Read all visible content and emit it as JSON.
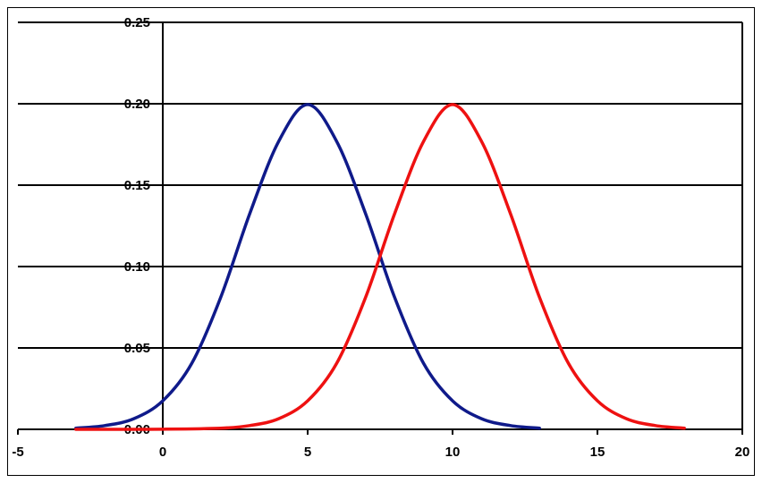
{
  "chart_data": {
    "type": "line",
    "title": "",
    "xlabel": "",
    "ylabel": "",
    "xlim": [
      -5,
      20
    ],
    "ylim": [
      0,
      0.25
    ],
    "x_ticks": [
      -5,
      0,
      5,
      10,
      15,
      20
    ],
    "x_tick_labels": [
      "-5",
      "0",
      "5",
      "10",
      "15",
      "20"
    ],
    "y_ticks": [
      0,
      0.05,
      0.1,
      0.15,
      0.2,
      0.25
    ],
    "y_tick_labels": [
      "0.00",
      "0.05",
      "0.10",
      "0.15",
      "0.20",
      "0.25"
    ],
    "grid": "horizontal",
    "legend": "none",
    "series": [
      {
        "color": "#0f1a8a",
        "x": [
          -3,
          -2,
          -1,
          0,
          1,
          2,
          3,
          4,
          5,
          6,
          7,
          8,
          9,
          10,
          11,
          12,
          13
        ],
        "y": [
          0.0007,
          0.0023,
          0.0065,
          0.0175,
          0.0405,
          0.0811,
          0.1324,
          0.1769,
          0.1995,
          0.1769,
          0.1324,
          0.0811,
          0.0405,
          0.0175,
          0.0065,
          0.0023,
          0.0007
        ]
      },
      {
        "color": "#ee1111",
        "x": [
          -3,
          -2,
          0,
          2,
          3,
          4,
          5,
          6,
          7,
          8,
          9,
          10,
          11,
          12,
          13,
          14,
          15,
          16,
          17,
          18
        ],
        "y": [
          0,
          0,
          0.0001,
          0.0007,
          0.0023,
          0.0065,
          0.0175,
          0.0405,
          0.0811,
          0.1324,
          0.1769,
          0.1995,
          0.1769,
          0.1324,
          0.0811,
          0.0405,
          0.0175,
          0.0065,
          0.0023,
          0.0007
        ]
      }
    ]
  }
}
